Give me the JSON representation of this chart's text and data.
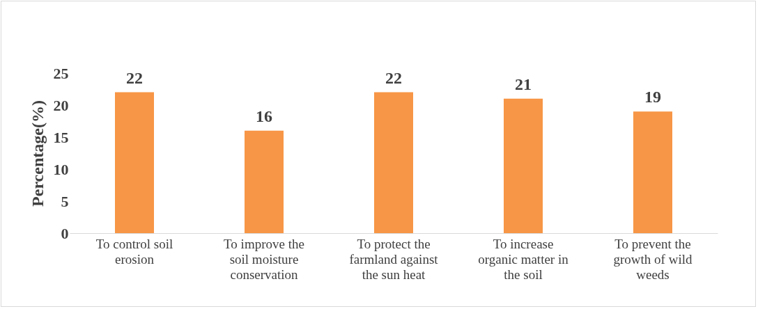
{
  "chart_data": {
    "type": "bar",
    "ylabel": "Percentage(%)",
    "categories": [
      "To control soil erosion",
      "To improve the soil moisture conservation",
      "To protect the farmland against the sun heat",
      "To increase organic matter in the soil",
      "To prevent the growth of wild weeds"
    ],
    "values": [
      22,
      16,
      22,
      21,
      19
    ],
    "color": "#f79646",
    "ylim": [
      0,
      25
    ],
    "yticks": [
      0,
      5,
      10,
      15,
      20,
      25
    ],
    "grid": false,
    "data_labels": true
  }
}
